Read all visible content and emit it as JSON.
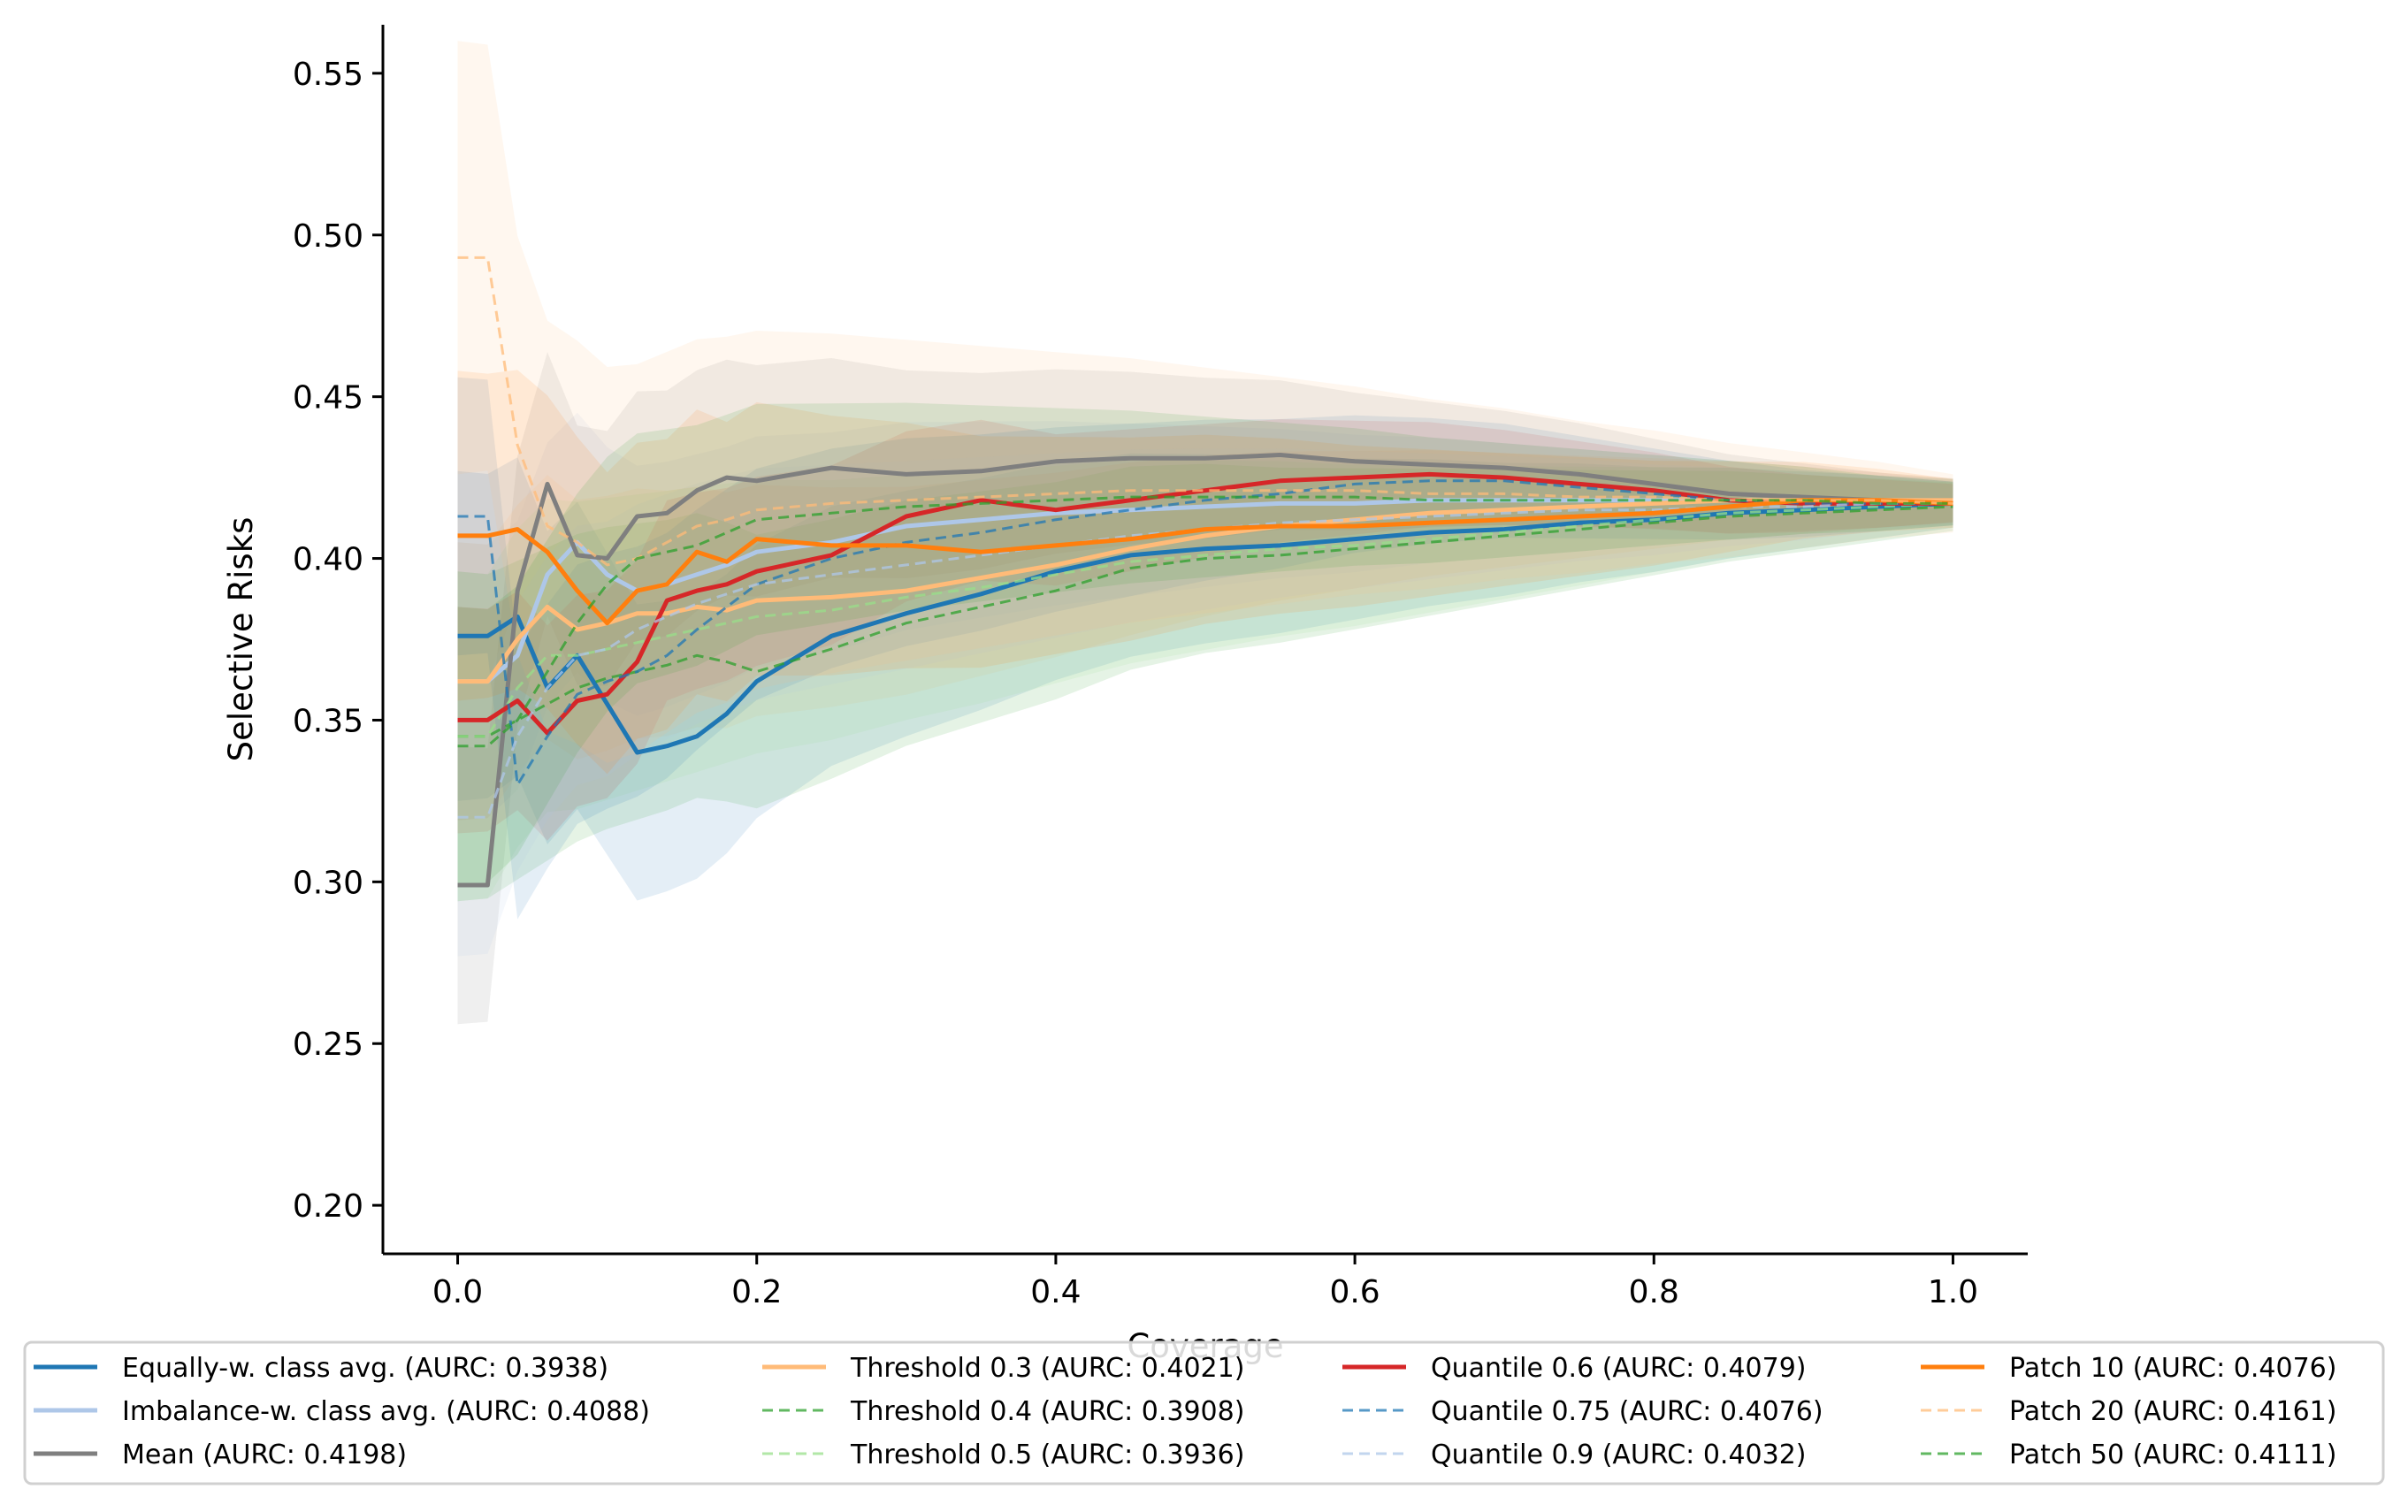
{
  "chart_data": {
    "type": "line",
    "title": "",
    "xlabel": "Coverage",
    "ylabel": "Selective Risks",
    "xlim": [
      -0.05,
      1.05
    ],
    "ylim": [
      0.185,
      0.565
    ],
    "xticks": [
      0.0,
      0.2,
      0.4,
      0.6,
      0.8,
      1.0
    ],
    "xtick_labels": [
      "0.0",
      "0.2",
      "0.4",
      "0.6",
      "0.8",
      "1.0"
    ],
    "yticks": [
      0.2,
      0.25,
      0.3,
      0.35,
      0.4,
      0.45,
      0.5,
      0.55
    ],
    "ytick_labels": [
      "0.20",
      "0.25",
      "0.30",
      "0.35",
      "0.40",
      "0.45",
      "0.50",
      "0.55"
    ],
    "grid": false,
    "legend_placement": "bottom, below x-axis, 4 columns",
    "x": [
      0.0,
      0.02,
      0.04,
      0.06,
      0.08,
      0.1,
      0.12,
      0.14,
      0.16,
      0.18,
      0.2,
      0.25,
      0.3,
      0.35,
      0.4,
      0.45,
      0.5,
      0.55,
      0.6,
      0.65,
      0.7,
      0.75,
      0.8,
      0.85,
      0.9,
      0.95,
      1.0
    ],
    "series": [
      {
        "name": "Equally-w. class avg. (AURC: 0.3938)",
        "color": "#1f77b4",
        "style": "solid",
        "width": 5,
        "values": [
          0.376,
          0.376,
          0.382,
          0.36,
          0.37,
          0.355,
          0.34,
          0.342,
          0.345,
          0.352,
          0.362,
          0.376,
          0.383,
          0.389,
          0.396,
          0.401,
          0.403,
          0.404,
          0.406,
          0.408,
          0.409,
          0.411,
          0.412,
          0.414,
          0.415,
          0.416,
          0.417
        ],
        "band": 0.03
      },
      {
        "name": "Imbalance-w. class avg. (AURC: 0.4088)",
        "color": "#aec7e8",
        "style": "solid",
        "width": 5,
        "values": [
          0.362,
          0.362,
          0.37,
          0.395,
          0.405,
          0.395,
          0.39,
          0.392,
          0.395,
          0.398,
          0.402,
          0.405,
          0.41,
          0.412,
          0.414,
          0.415,
          0.416,
          0.417,
          0.417,
          0.418,
          0.418,
          0.418,
          0.418,
          0.418,
          0.418,
          0.418,
          0.417
        ],
        "band": 0.025
      },
      {
        "name": "Mean (AURC: 0.4198)",
        "color": "#7f7f7f",
        "style": "solid",
        "width": 5,
        "values": [
          0.299,
          0.299,
          0.39,
          0.423,
          0.401,
          0.4,
          0.413,
          0.414,
          0.421,
          0.425,
          0.424,
          0.428,
          0.426,
          0.427,
          0.43,
          0.431,
          0.431,
          0.432,
          0.43,
          0.429,
          0.428,
          0.426,
          0.423,
          0.42,
          0.419,
          0.418,
          0.418
        ],
        "band": 0.025
      },
      {
        "name": "Threshold 0.3 (AURC: 0.4021)",
        "color": "#ffbb78",
        "style": "solid",
        "width": 5,
        "values": [
          0.362,
          0.362,
          0.375,
          0.385,
          0.378,
          0.38,
          0.383,
          0.383,
          0.385,
          0.384,
          0.387,
          0.388,
          0.39,
          0.394,
          0.398,
          0.403,
          0.407,
          0.41,
          0.412,
          0.414,
          0.415,
          0.416,
          0.417,
          0.418,
          0.418,
          0.418,
          0.418
        ],
        "band": 0.025
      },
      {
        "name": "Threshold 0.4 (AURC: 0.3908)",
        "color": "#2ca02c",
        "style": "dashed",
        "width": 3,
        "values": [
          0.345,
          0.345,
          0.35,
          0.355,
          0.36,
          0.363,
          0.365,
          0.367,
          0.37,
          0.368,
          0.365,
          0.372,
          0.38,
          0.385,
          0.39,
          0.397,
          0.4,
          0.401,
          0.403,
          0.405,
          0.407,
          0.409,
          0.411,
          0.413,
          0.414,
          0.415,
          0.416
        ],
        "band": 0.03
      },
      {
        "name": "Threshold 0.5 (AURC: 0.3936)",
        "color": "#98df8a",
        "style": "dashed",
        "width": 3,
        "values": [
          0.345,
          0.345,
          0.36,
          0.37,
          0.37,
          0.372,
          0.374,
          0.376,
          0.378,
          0.38,
          0.382,
          0.384,
          0.388,
          0.391,
          0.395,
          0.399,
          0.401,
          0.403,
          0.404,
          0.406,
          0.408,
          0.41,
          0.412,
          0.414,
          0.415,
          0.416,
          0.417
        ],
        "band": 0.03
      },
      {
        "name": "Quantile 0.6 (AURC: 0.4079)",
        "color": "#d62728",
        "style": "solid",
        "width": 5,
        "values": [
          0.35,
          0.35,
          0.356,
          0.346,
          0.356,
          0.358,
          0.368,
          0.387,
          0.39,
          0.392,
          0.396,
          0.401,
          0.413,
          0.418,
          0.415,
          0.418,
          0.421,
          0.424,
          0.425,
          0.426,
          0.425,
          0.423,
          0.421,
          0.418,
          0.417,
          0.417,
          0.417
        ],
        "band": 0.02
      },
      {
        "name": "Quantile 0.75 (AURC: 0.4076)",
        "color": "#1f77b4",
        "style": "dashed",
        "width": 3,
        "values": [
          0.413,
          0.413,
          0.33,
          0.345,
          0.358,
          0.362,
          0.365,
          0.37,
          0.378,
          0.385,
          0.392,
          0.4,
          0.405,
          0.408,
          0.412,
          0.415,
          0.418,
          0.42,
          0.423,
          0.424,
          0.424,
          0.422,
          0.42,
          0.418,
          0.417,
          0.417,
          0.417
        ],
        "band": 0.025
      },
      {
        "name": "Quantile 0.9 (AURC: 0.4032)",
        "color": "#aec7e8",
        "style": "dashed",
        "width": 3,
        "values": [
          0.32,
          0.32,
          0.345,
          0.36,
          0.37,
          0.372,
          0.378,
          0.382,
          0.386,
          0.389,
          0.392,
          0.395,
          0.398,
          0.401,
          0.404,
          0.407,
          0.409,
          0.411,
          0.412,
          0.413,
          0.414,
          0.415,
          0.415,
          0.416,
          0.416,
          0.417,
          0.417
        ],
        "band": 0.025
      },
      {
        "name": "Patch 10 (AURC: 0.4076)",
        "color": "#ff7f0e",
        "style": "solid",
        "width": 5,
        "values": [
          0.407,
          0.407,
          0.409,
          0.402,
          0.39,
          0.38,
          0.39,
          0.392,
          0.402,
          0.399,
          0.406,
          0.404,
          0.404,
          0.402,
          0.404,
          0.406,
          0.409,
          0.41,
          0.41,
          0.411,
          0.412,
          0.413,
          0.414,
          0.416,
          0.418,
          0.418,
          0.417
        ],
        "band": 0.03
      },
      {
        "name": "Patch 20 (AURC: 0.4161)",
        "color": "#ffbb78",
        "style": "dashed",
        "width": 3,
        "values": [
          0.493,
          0.493,
          0.435,
          0.41,
          0.405,
          0.398,
          0.4,
          0.405,
          0.41,
          0.412,
          0.415,
          0.417,
          0.418,
          0.419,
          0.42,
          0.421,
          0.421,
          0.421,
          0.421,
          0.42,
          0.42,
          0.419,
          0.419,
          0.418,
          0.418,
          0.418,
          0.417
        ],
        "band": 0.04
      },
      {
        "name": "Patch 50 (AURC: 0.4111)",
        "color": "#2ca02c",
        "style": "dashed",
        "width": 3,
        "values": [
          0.342,
          0.342,
          0.35,
          0.365,
          0.38,
          0.392,
          0.4,
          0.402,
          0.404,
          0.408,
          0.412,
          0.414,
          0.416,
          0.417,
          0.418,
          0.419,
          0.419,
          0.419,
          0.419,
          0.418,
          0.418,
          0.418,
          0.418,
          0.418,
          0.418,
          0.417,
          0.417
        ],
        "band": 0.025
      }
    ],
    "legend_columns": [
      [
        0,
        1,
        2
      ],
      [
        3,
        4,
        5
      ],
      [
        6,
        7,
        8
      ],
      [
        9,
        10,
        11
      ]
    ]
  }
}
